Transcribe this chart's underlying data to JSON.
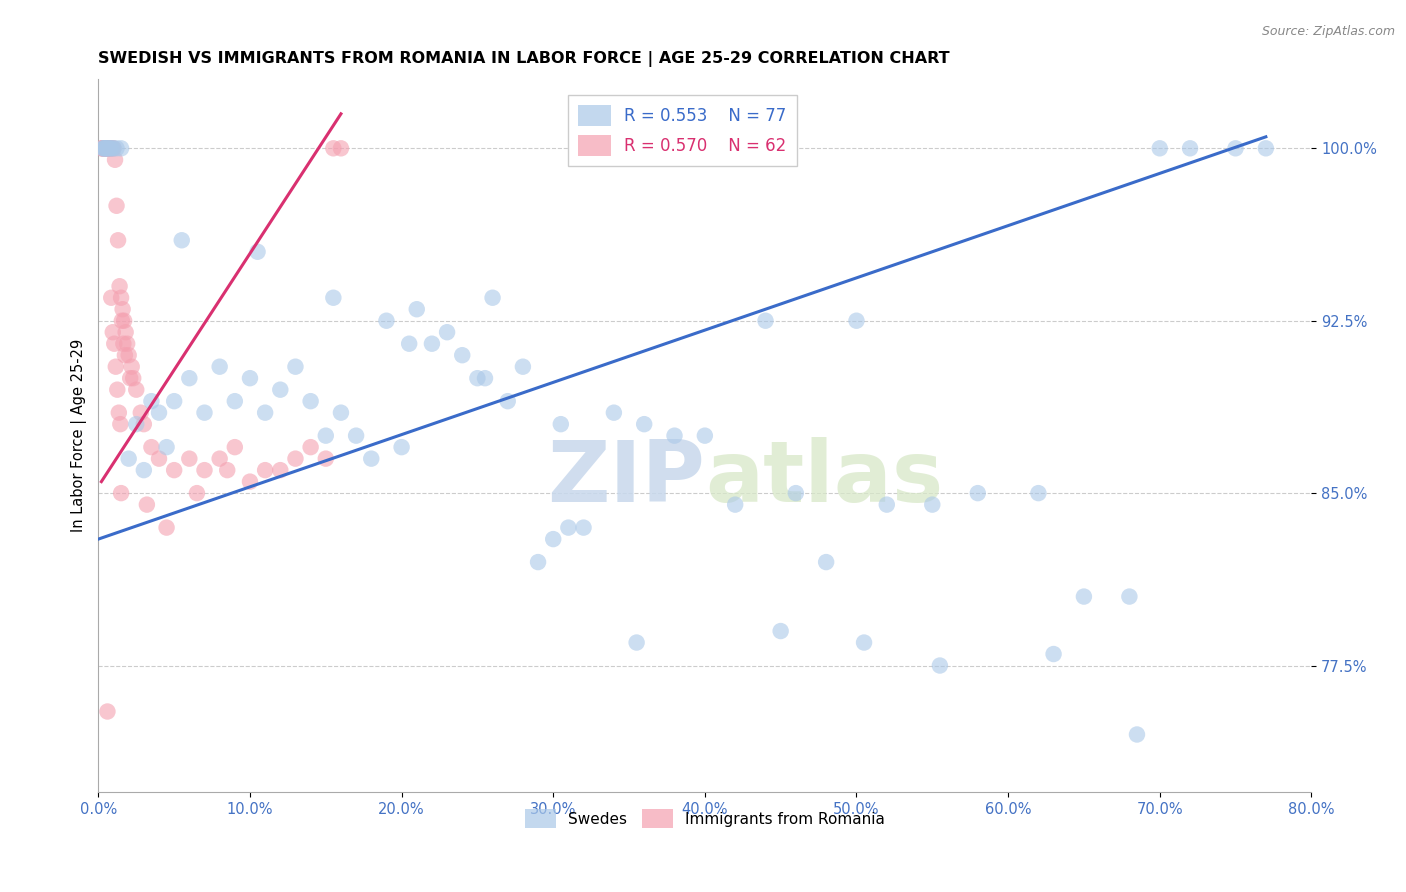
{
  "title": "SWEDISH VS IMMIGRANTS FROM ROMANIA IN LABOR FORCE | AGE 25-29 CORRELATION CHART",
  "source": "Source: ZipAtlas.com",
  "ylabel": "In Labor Force | Age 25-29",
  "xlim": [
    0.0,
    80.0
  ],
  "ylim": [
    72.0,
    103.0
  ],
  "blue_color": "#aac8e8",
  "pink_color": "#f4a0b0",
  "trend_blue": "#3a6bc9",
  "trend_pink": "#d93070",
  "legend_blue_r": "R = 0.553",
  "legend_blue_n": "N = 77",
  "legend_pink_r": "R = 0.570",
  "legend_pink_n": "N = 62",
  "watermark_zip": "ZIP",
  "watermark_atlas": "atlas",
  "blue_scatter_x": [
    0.3,
    0.4,
    0.5,
    0.6,
    0.8,
    1.0,
    1.2,
    1.5,
    2.0,
    2.5,
    3.0,
    3.5,
    4.0,
    4.5,
    5.0,
    6.0,
    7.0,
    8.0,
    9.0,
    10.0,
    11.0,
    12.0,
    13.0,
    14.0,
    15.0,
    16.0,
    17.0,
    18.0,
    19.0,
    20.0,
    21.0,
    22.0,
    23.0,
    24.0,
    25.0,
    26.0,
    27.0,
    28.0,
    29.0,
    30.0,
    31.0,
    32.0,
    34.0,
    36.0,
    38.0,
    40.0,
    42.0,
    44.0,
    46.0,
    48.0,
    50.0,
    52.0,
    55.0,
    58.0,
    62.0,
    65.0,
    68.0,
    70.0,
    72.0,
    75.0,
    77.0,
    0.35,
    0.55,
    0.7,
    0.9,
    5.5,
    10.5,
    15.5,
    20.5,
    25.5,
    30.5,
    35.5,
    45.0,
    50.5,
    55.5,
    63.0,
    68.5
  ],
  "blue_scatter_y": [
    100.0,
    100.0,
    100.0,
    100.0,
    100.0,
    100.0,
    100.0,
    100.0,
    86.5,
    88.0,
    86.0,
    89.0,
    88.5,
    87.0,
    89.0,
    90.0,
    88.5,
    90.5,
    89.0,
    90.0,
    88.5,
    89.5,
    90.5,
    89.0,
    87.5,
    88.5,
    87.5,
    86.5,
    92.5,
    87.0,
    93.0,
    91.5,
    92.0,
    91.0,
    90.0,
    93.5,
    89.0,
    90.5,
    82.0,
    83.0,
    83.5,
    83.5,
    88.5,
    88.0,
    87.5,
    87.5,
    84.5,
    92.5,
    85.0,
    82.0,
    92.5,
    84.5,
    84.5,
    85.0,
    85.0,
    80.5,
    80.5,
    100.0,
    100.0,
    100.0,
    100.0,
    100.0,
    100.0,
    100.0,
    100.0,
    96.0,
    95.5,
    93.5,
    91.5,
    90.0,
    88.0,
    78.5,
    79.0,
    78.5,
    77.5,
    78.0,
    74.5
  ],
  "pink_scatter_x": [
    0.2,
    0.25,
    0.3,
    0.35,
    0.4,
    0.45,
    0.5,
    0.55,
    0.6,
    0.65,
    0.7,
    0.75,
    0.8,
    0.9,
    1.0,
    1.1,
    1.2,
    1.3,
    1.4,
    1.5,
    1.6,
    1.7,
    1.8,
    1.9,
    2.0,
    2.2,
    2.5,
    2.8,
    3.0,
    3.5,
    4.0,
    5.0,
    6.0,
    7.0,
    8.0,
    9.0,
    10.0,
    11.0,
    12.0,
    13.0,
    14.0,
    15.0,
    16.0,
    3.2,
    4.5,
    1.55,
    1.65,
    1.75,
    0.85,
    0.95,
    1.05,
    1.15,
    1.25,
    1.35,
    1.45,
    2.1,
    2.3,
    6.5,
    8.5,
    15.5,
    1.5,
    0.6
  ],
  "pink_scatter_y": [
    100.0,
    100.0,
    100.0,
    100.0,
    100.0,
    100.0,
    100.0,
    100.0,
    100.0,
    100.0,
    100.0,
    100.0,
    100.0,
    100.0,
    100.0,
    99.5,
    97.5,
    96.0,
    94.0,
    93.5,
    93.0,
    92.5,
    92.0,
    91.5,
    91.0,
    90.5,
    89.5,
    88.5,
    88.0,
    87.0,
    86.5,
    86.0,
    86.5,
    86.0,
    86.5,
    87.0,
    85.5,
    86.0,
    86.0,
    86.5,
    87.0,
    86.5,
    100.0,
    84.5,
    83.5,
    92.5,
    91.5,
    91.0,
    93.5,
    92.0,
    91.5,
    90.5,
    89.5,
    88.5,
    88.0,
    90.0,
    90.0,
    85.0,
    86.0,
    100.0,
    85.0,
    75.5
  ],
  "blue_trend_x": [
    0.0,
    77.0
  ],
  "blue_trend_y": [
    83.0,
    100.5
  ],
  "pink_trend_x": [
    0.2,
    16.0
  ],
  "pink_trend_y": [
    85.5,
    101.5
  ],
  "x_ticks": [
    0,
    10,
    20,
    30,
    40,
    50,
    60,
    70,
    80
  ],
  "y_ticks": [
    77.5,
    85.0,
    92.5,
    100.0
  ]
}
